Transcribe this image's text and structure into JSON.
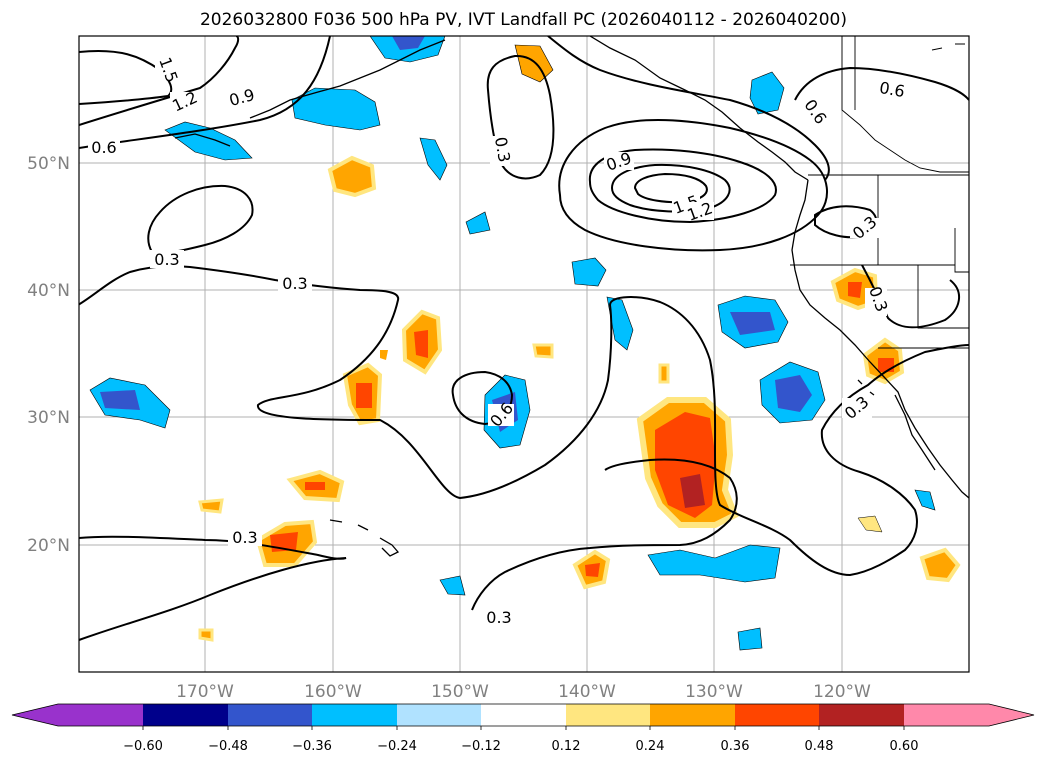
{
  "title": "2026032800 F036 500 hPa PV, IVT Landfall PC (2026040112 - 2026040200)",
  "latitude_labels": [
    "50°N",
    "40°N",
    "30°N",
    "20°N"
  ],
  "longitude_labels": [
    "170°W",
    "160°W",
    "150°W",
    "140°W",
    "130°W",
    "120°W"
  ],
  "contour_labels": [
    "1.5",
    "1.2",
    "0.9",
    "0.6",
    "0.3",
    "0.3",
    "0.3",
    "0.3",
    "0.6",
    "0.9",
    "1.5",
    "1.2",
    "0.6",
    "0.6",
    "0.3",
    "0.3",
    "0.3",
    "0.3"
  ],
  "colorbar": {
    "colors": [
      "#9932cc",
      "#00008b",
      "#3355cc",
      "#00bfff",
      "#b0e2ff",
      "#ffffff",
      "#ffe680",
      "#ffa500",
      "#ff4500",
      "#b22222",
      "#ff88aa"
    ],
    "tick_labels": [
      "−0.60",
      "−0.48",
      "−0.36",
      "−0.24",
      "−0.12",
      "0.12",
      "0.24",
      "0.36",
      "0.48",
      "0.60"
    ]
  }
}
